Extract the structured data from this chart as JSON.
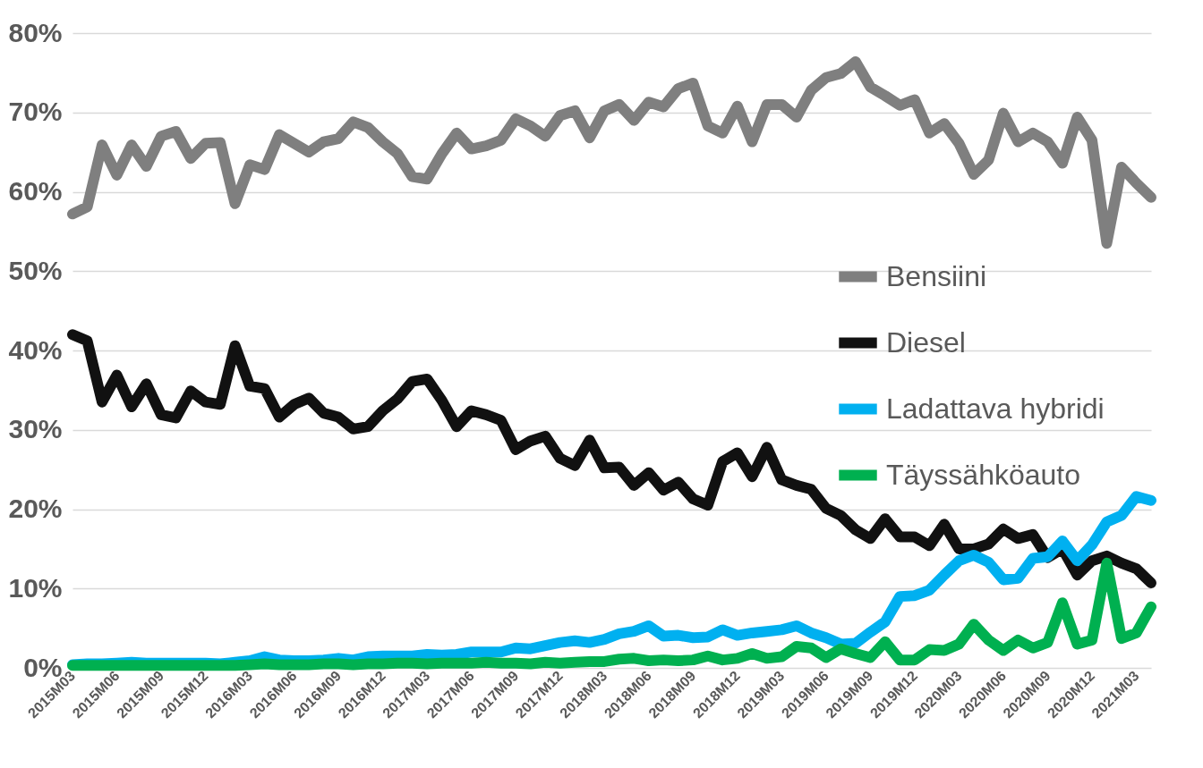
{
  "chart_data": {
    "type": "line",
    "categories": [
      "2015M03",
      null,
      null,
      "2015M06",
      null,
      null,
      "2015M09",
      null,
      null,
      "2015M12",
      null,
      null,
      "2016M03",
      null,
      null,
      "2016M06",
      null,
      null,
      "2016M09",
      null,
      null,
      "2016M12",
      null,
      null,
      "2017M03",
      null,
      null,
      "2017M06",
      null,
      null,
      "2017M09",
      null,
      null,
      "2017M12",
      null,
      null,
      "2018M03",
      null,
      null,
      "2018M06",
      null,
      null,
      "2018M09",
      null,
      null,
      "2018M12",
      null,
      null,
      "2019M03",
      null,
      null,
      "2019M06",
      null,
      null,
      "2019M09",
      null,
      null,
      "2019M12",
      null,
      null,
      "2020M03",
      null,
      null,
      "2020M06",
      null,
      null,
      "2020M09",
      null,
      null,
      "2020M12",
      null,
      null,
      "2021M03",
      null
    ],
    "series": [
      {
        "name": "Bensiini",
        "color": "#7f7f7f",
        "values": [
          57.2,
          58.1,
          65.9,
          62.1,
          65.9,
          63.2,
          67,
          67.6,
          64.2,
          66.1,
          66.2,
          58.5,
          63.4,
          62.8,
          67.2,
          66.1,
          65,
          66.3,
          66.7,
          68.8,
          68.1,
          66.3,
          64.8,
          61.9,
          61.6,
          64.8,
          67.4,
          65.4,
          65.8,
          66.5,
          69.2,
          68.3,
          67,
          69.6,
          70.2,
          66.8,
          70.2,
          71,
          69,
          71.3,
          70.7,
          73,
          73.7,
          68.3,
          67.4,
          70.8,
          66.3,
          71,
          71,
          69.4,
          72.8,
          74.4,
          74.9,
          76.4,
          73.2,
          72.1,
          70.9,
          71.6,
          67.4,
          68.6,
          66.1,
          62.2,
          64,
          69.9,
          66.3,
          67.4,
          66.3,
          63.6,
          69.4,
          66.5,
          53.5,
          63.1,
          61.1,
          59.3
        ]
      },
      {
        "name": "Diesel",
        "color": "#111111",
        "values": [
          42,
          41.2,
          33.5,
          36.9,
          32.9,
          35.8,
          31.9,
          31.5,
          34.9,
          33.5,
          33.2,
          40.6,
          35.5,
          35.2,
          31.6,
          33.2,
          34,
          32.1,
          31.6,
          30.1,
          30.4,
          32.4,
          33.9,
          36.1,
          36.4,
          33.7,
          30.4,
          32.4,
          31.9,
          31.2,
          27.5,
          28.6,
          29.2,
          26.4,
          25.5,
          28.7,
          25.2,
          25.3,
          23,
          24.6,
          22.4,
          23.4,
          21.3,
          20.5,
          26,
          27.1,
          24.1,
          27.8,
          23.7,
          23,
          22.5,
          20.1,
          19.2,
          17.4,
          16.3,
          18.8,
          16.5,
          16.5,
          15.4,
          18.1,
          15,
          15,
          15.6,
          17.5,
          16.3,
          16.8,
          13.9,
          15,
          11.7,
          13.5,
          14.1,
          13.2,
          12.5,
          10.7
        ]
      },
      {
        "name": "Ladattava hybridi",
        "color": "#00b0f0",
        "values": [
          0.4,
          0.5,
          0.5,
          0.6,
          0.7,
          0.6,
          0.6,
          0.6,
          0.6,
          0.6,
          0.5,
          0.7,
          0.9,
          1.4,
          1,
          0.9,
          0.9,
          1,
          1.2,
          1,
          1.4,
          1.5,
          1.5,
          1.5,
          1.7,
          1.6,
          1.7,
          2,
          2,
          2,
          2.5,
          2.4,
          2.8,
          3.2,
          3.4,
          3.2,
          3.6,
          4.3,
          4.6,
          5.3,
          4,
          4.1,
          3.8,
          3.9,
          4.8,
          4.1,
          4.4,
          4.6,
          4.8,
          5.3,
          4.4,
          3.8,
          3,
          3.1,
          4.5,
          5.8,
          9,
          9.1,
          9.8,
          11.7,
          13.5,
          14.2,
          13.3,
          11.1,
          11.3,
          13.8,
          14,
          16,
          13.5,
          15.5,
          18.4,
          19.2,
          21.6,
          21.1
        ]
      },
      {
        "name": "Täyssähköauto",
        "color": "#00b050",
        "values": [
          0.3,
          0.3,
          0.3,
          0.3,
          0.3,
          0.3,
          0.3,
          0.3,
          0.3,
          0.3,
          0.3,
          0.3,
          0.4,
          0.5,
          0.4,
          0.4,
          0.4,
          0.5,
          0.5,
          0.4,
          0.5,
          0.5,
          0.6,
          0.6,
          0.5,
          0.6,
          0.6,
          0.6,
          0.7,
          0.6,
          0.6,
          0.5,
          0.7,
          0.6,
          0.7,
          0.8,
          0.8,
          1.1,
          1.2,
          0.9,
          1,
          0.9,
          1,
          1.5,
          1,
          1.2,
          1.8,
          1.2,
          1.4,
          2.7,
          2.5,
          1.3,
          2.4,
          1.8,
          1.3,
          3.3,
          1,
          1,
          2.3,
          2.2,
          3,
          5.5,
          3.5,
          2.2,
          3.5,
          2.5,
          3.2,
          8.2,
          3,
          3.5,
          13.2,
          3.7,
          4.4,
          7.7
        ]
      }
    ],
    "ylim": [
      0,
      80
    ],
    "yticks": [
      {
        "value": 0,
        "label": "0%"
      },
      {
        "value": 10,
        "label": "10%"
      },
      {
        "value": 20,
        "label": "20%"
      },
      {
        "value": 30,
        "label": "30%"
      },
      {
        "value": 40,
        "label": "40%"
      },
      {
        "value": 50,
        "label": "50%"
      },
      {
        "value": 60,
        "label": "60%"
      },
      {
        "value": 70,
        "label": "70%"
      },
      {
        "value": 80,
        "label": "80%"
      }
    ],
    "grid": "y",
    "legend": "right",
    "marker": "none",
    "line_style": "solid"
  }
}
